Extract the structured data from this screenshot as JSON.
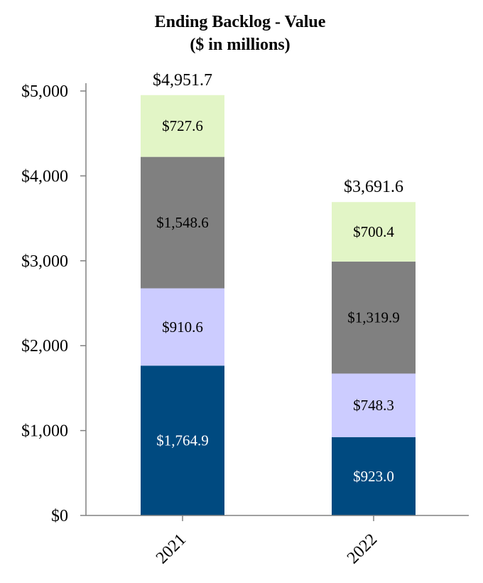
{
  "chart_data": {
    "type": "bar",
    "stacked": true,
    "title": [
      "Ending Backlog - Value",
      "($ in millions)"
    ],
    "categories": [
      "2021",
      "2022"
    ],
    "ylim": [
      0,
      5000
    ],
    "y_ticks": [
      0,
      1000,
      2000,
      3000,
      4000,
      5000
    ],
    "y_tick_labels": [
      "$0",
      "$1,000",
      "$2,000",
      "$3,000",
      "$4,000",
      "$5,000"
    ],
    "series": [
      {
        "color": "#004A80",
        "label_color": "#ffffff",
        "values": [
          1764.9,
          923.0
        ],
        "labels": [
          "$1,764.9",
          "$923.0"
        ]
      },
      {
        "color": "#CCCCFF",
        "label_color": "#000000",
        "values": [
          910.6,
          748.3
        ],
        "labels": [
          "$910.6",
          "$748.3"
        ]
      },
      {
        "color": "#808080",
        "label_color": "#000000",
        "values": [
          1548.6,
          1319.9
        ],
        "labels": [
          "$1,548.6",
          "$1,319.9"
        ]
      },
      {
        "color": "#E2F5C6",
        "label_color": "#000000",
        "values": [
          727.6,
          700.4
        ],
        "labels": [
          "$727.6",
          "$700.4"
        ]
      }
    ],
    "totals": [
      4951.7,
      3691.6
    ],
    "total_labels": [
      "$4,951.7",
      "$3,691.6"
    ]
  }
}
